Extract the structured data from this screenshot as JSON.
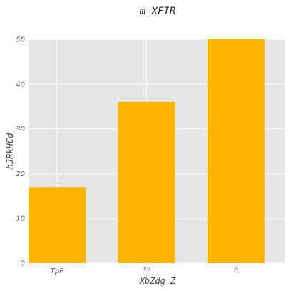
{
  "chart_data": {
    "type": "bar",
    "title": "m XFIR",
    "xlabel": "XbZdg Z",
    "ylabel": "hJRkHCd",
    "categories": [
      "TpP",
      "dQx",
      "jS"
    ],
    "values": [
      17,
      36,
      50
    ],
    "ylim": [
      0,
      50
    ],
    "yticks": [
      0,
      10,
      20,
      30,
      40,
      50
    ],
    "grid": true,
    "legend": "none",
    "colors": {
      "bar": "#FFB400",
      "plot_background": "#E5E5E5",
      "grid": "#FFFFFF"
    }
  }
}
